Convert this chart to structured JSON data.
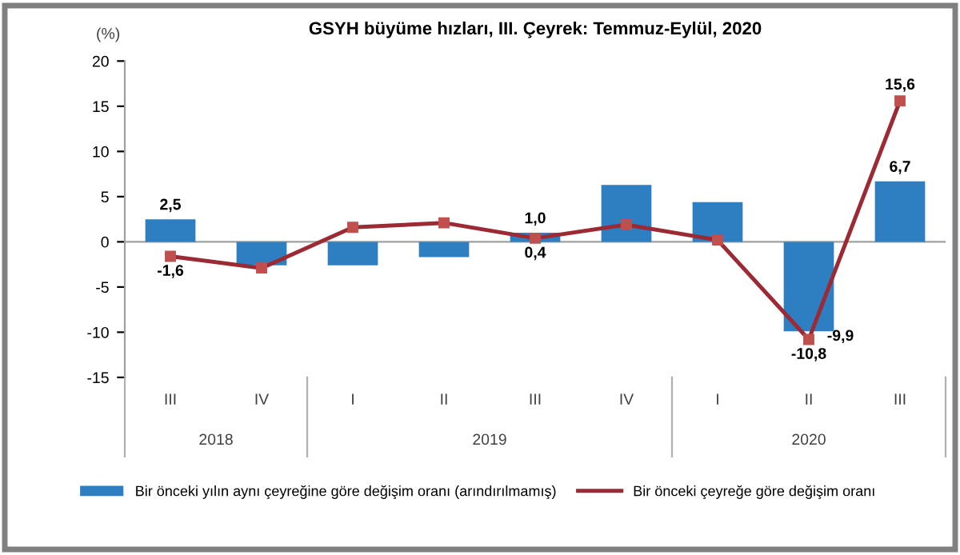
{
  "chart_data": {
    "type": "bar",
    "title": "GSYH büyüme hızları, III. Çeyrek: Temmuz-Eylül, 2020",
    "ylabel": "(%)",
    "categories": [
      "III",
      "IV",
      "I",
      "II",
      "III",
      "IV",
      "I",
      "II",
      "III"
    ],
    "series": [
      {
        "name": "Bir önceki yılın aynı çeyreğine göre değişim oranı (arındırılmamış)",
        "color": "#2e7fc2",
        "values": [
          2.5,
          -2.6,
          -2.6,
          -1.7,
          1.0,
          6.3,
          4.4,
          -9.9,
          6.7
        ],
        "value_labels": [
          "2,5",
          null,
          null,
          null,
          "1,0",
          null,
          null,
          "-9,9",
          "6,7"
        ]
      },
      {
        "name": "Bir önceki çeyreğe göre değişim oranı",
        "type": "line",
        "color": "#9c2a34",
        "marker": "square",
        "values": [
          -1.6,
          -2.9,
          1.6,
          2.1,
          0.4,
          1.9,
          0.2,
          -10.8,
          15.6
        ],
        "value_labels": [
          "-1,6",
          null,
          null,
          null,
          "0,4",
          null,
          null,
          "-10,8",
          "15,6"
        ]
      }
    ],
    "annotations": [
      "2018",
      "2019",
      "2020"
    ],
    "ylim": [
      -15,
      20
    ],
    "yticks": [
      -15,
      -10,
      -5,
      0,
      5,
      10,
      15,
      20
    ],
    "legend": "bottom"
  }
}
